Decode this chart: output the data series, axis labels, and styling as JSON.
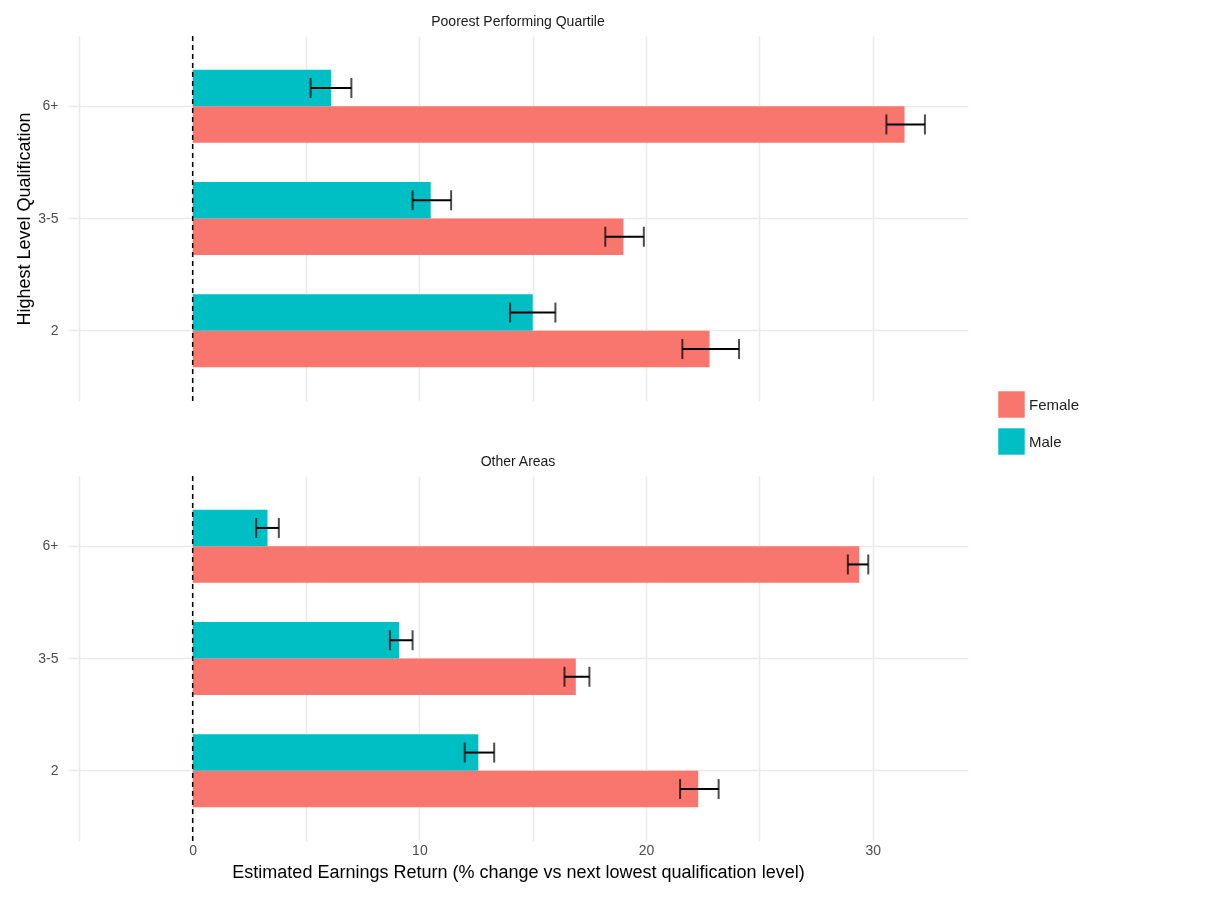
{
  "chart_data": [
    {
      "type": "bar",
      "orientation": "horizontal",
      "title": "Poorest Performing Quartile",
      "ylabel": "Highest Level Qualification",
      "categories": [
        "6+",
        "3-5",
        "2"
      ],
      "series": [
        {
          "name": "Female",
          "color": "#f8766d",
          "values": [
            31.4,
            19.0,
            22.8
          ],
          "errors": [
            [
              30.6,
              32.3
            ],
            [
              18.2,
              19.9
            ],
            [
              21.6,
              24.1
            ]
          ]
        },
        {
          "name": "Male",
          "color": "#00bfc4",
          "values": [
            6.1,
            10.5,
            15.0
          ],
          "errors": [
            [
              5.2,
              7.0
            ],
            [
              9.7,
              11.4
            ],
            [
              14.0,
              16.0
            ]
          ]
        }
      ],
      "xlim": [
        -5.5,
        34.2
      ],
      "xticks": [
        {
          "value": -5,
          "label": null
        },
        0,
        {
          "value": 5,
          "label": null
        },
        10,
        {
          "value": 15,
          "label": null
        },
        20,
        {
          "value": 25,
          "label": null
        },
        30
      ],
      "ref_lines": [
        {
          "axis": "x",
          "value": 0,
          "color": "#000000",
          "line_style": "dashed"
        }
      ],
      "grid": true,
      "tick_labels": "y",
      "legend": "right"
    },
    {
      "type": "bar",
      "orientation": "horizontal",
      "title": "Other Areas",
      "xlabel": "Estimated Earnings Return (% change vs next lowest qualification level)",
      "categories": [
        "6+",
        "3-5",
        "2"
      ],
      "series": [
        {
          "name": "Female",
          "color": "#f8766d",
          "values": [
            29.4,
            16.9,
            22.3
          ],
          "errors": [
            [
              28.9,
              29.8
            ],
            [
              16.4,
              17.5
            ],
            [
              21.5,
              23.2
            ]
          ]
        },
        {
          "name": "Male",
          "color": "#00bfc4",
          "values": [
            3.3,
            9.1,
            12.6
          ],
          "errors": [
            [
              2.8,
              3.8
            ],
            [
              8.7,
              9.7
            ],
            [
              12.0,
              13.3
            ]
          ]
        }
      ],
      "xlim": [
        -5.5,
        34.2
      ],
      "xticks": [
        {
          "value": -5,
          "label": null
        },
        0,
        {
          "value": 5,
          "label": null
        },
        10,
        {
          "value": 15,
          "label": null
        },
        20,
        {
          "value": 25,
          "label": null
        },
        30
      ],
      "ref_lines": [
        {
          "axis": "x",
          "value": 0,
          "color": "#000000",
          "line_style": "dashed"
        }
      ],
      "grid": true
    }
  ]
}
